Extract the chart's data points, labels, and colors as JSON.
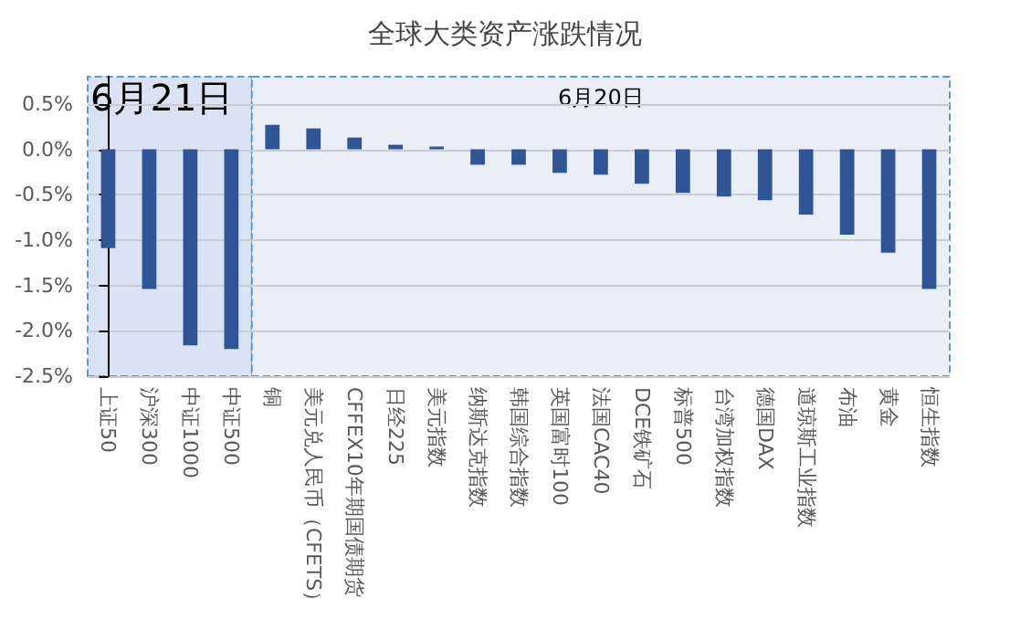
{
  "chart_data": {
    "type": "bar",
    "title": "全球大类资产涨跌情况",
    "categories": [
      "上证50",
      "沪深300",
      "中证1000",
      "中证500",
      "铜",
      "美元兑人民币（CFETS）",
      "CFFEX10年期国债期货",
      "日经225",
      "美元指数",
      "纳斯达克指数",
      "韩国综合指数",
      "英国富时100",
      "法国CAC40",
      "DCE铁矿石",
      "标普500",
      "台湾加权指数",
      "德国DAX",
      "道琼斯工业指数",
      "布油",
      "黄金",
      "恒生指数"
    ],
    "values": [
      -1.09,
      -1.54,
      -2.16,
      -2.2,
      0.27,
      0.23,
      0.13,
      0.05,
      0.03,
      -0.17,
      -0.17,
      -0.26,
      -0.28,
      -0.38,
      -0.48,
      -0.52,
      -0.56,
      -0.72,
      -0.94,
      -1.14,
      -1.54
    ],
    "color": "#2f5597",
    "ylim": [
      -2.5,
      0.8
    ],
    "yticks": [
      {
        "value": -2.5,
        "label": "-2.5%"
      },
      {
        "value": -2,
        "label": "-2.0%"
      },
      {
        "value": -1.5,
        "label": "-1.5%"
      },
      {
        "value": -1,
        "label": "-1.0%"
      },
      {
        "value": -0.5,
        "label": "-0.5%"
      },
      {
        "value": 0,
        "label": "0.0%"
      },
      {
        "value": 0.5,
        "label": "0.5%"
      }
    ],
    "grid": "y",
    "bands": [
      {
        "axis": "x",
        "from": "上证50",
        "to": "中证500",
        "label": "6月21日",
        "color": "#dae3f3"
      },
      {
        "axis": "x",
        "from": "铜",
        "to": "恒生指数",
        "label": "6月20日",
        "color": "#e9eef7"
      }
    ]
  }
}
